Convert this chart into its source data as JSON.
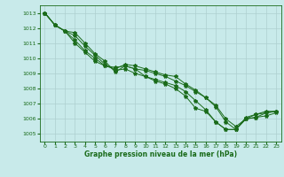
{
  "bg_color": "#c8eaea",
  "grid_color": "#aecfcf",
  "line_color": "#1a6b1a",
  "text_color": "#1a6b1a",
  "xlabel": "Graphe pression niveau de la mer (hPa)",
  "xlim": [
    -0.5,
    23.5
  ],
  "ylim": [
    1004.5,
    1013.5
  ],
  "yticks": [
    1005,
    1006,
    1007,
    1008,
    1009,
    1010,
    1011,
    1012,
    1013
  ],
  "xticks": [
    0,
    1,
    2,
    3,
    4,
    5,
    6,
    7,
    8,
    9,
    10,
    11,
    12,
    13,
    14,
    15,
    16,
    17,
    18,
    19,
    20,
    21,
    22,
    23
  ],
  "series": [
    [
      1013.0,
      1012.2,
      1011.8,
      1011.7,
      1011.0,
      1010.3,
      1009.8,
      1009.1,
      1009.5,
      1009.3,
      1008.8,
      1008.5,
      1008.3,
      1008.0,
      1007.5,
      1006.7,
      1006.5,
      1005.8,
      1005.3,
      1005.3,
      1006.0,
      1006.1,
      1006.4,
      1006.5
    ],
    [
      1013.0,
      1012.2,
      1011.8,
      1011.5,
      1010.8,
      1010.2,
      1009.6,
      1009.2,
      1009.3,
      1009.0,
      1008.8,
      1008.6,
      1008.4,
      1008.2,
      1007.8,
      1007.2,
      1006.6,
      1005.8,
      1005.3,
      1005.3,
      1006.0,
      1006.3,
      1006.4,
      1006.5
    ],
    [
      1013.0,
      1012.2,
      1011.8,
      1011.2,
      1010.5,
      1010.0,
      1009.5,
      1009.4,
      1009.5,
      1009.3,
      1009.2,
      1009.0,
      1008.8,
      1008.5,
      1008.2,
      1007.8,
      1007.4,
      1006.8,
      1005.8,
      1005.3,
      1006.1,
      1006.3,
      1006.5,
      1006.5
    ],
    [
      1013.0,
      1012.2,
      1011.8,
      1011.0,
      1010.4,
      1009.8,
      1009.5,
      1009.3,
      1009.6,
      1009.5,
      1009.3,
      1009.1,
      1008.9,
      1008.8,
      1008.3,
      1007.9,
      1007.4,
      1006.9,
      1006.0,
      1005.5,
      1006.0,
      1006.1,
      1006.2,
      1006.4
    ]
  ]
}
